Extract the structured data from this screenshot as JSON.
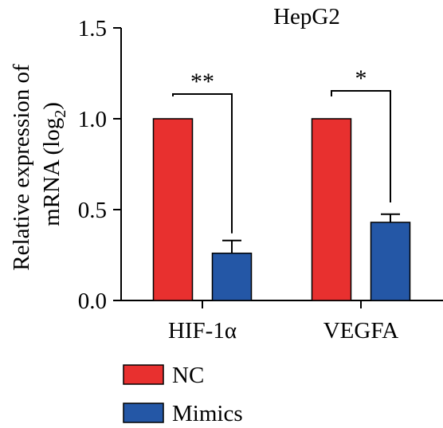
{
  "chart_data": {
    "type": "bar",
    "title": "HepG2",
    "ylabel_line1": "Relative expression of",
    "ylabel_line2_prefix": "mRNA (log",
    "ylabel_line2_sub": "2",
    "ylabel_line2_suffix": ")",
    "xlabel": "",
    "ylim": [
      0,
      1.5
    ],
    "yticks": [
      "0.0",
      "0.5",
      "1.0",
      "1.5"
    ],
    "categories": [
      "HIF-1α",
      "VEGFA"
    ],
    "series": [
      {
        "name": "NC",
        "color": "#e8302f",
        "values": [
          1.0,
          1.0
        ],
        "errors": [
          0,
          0
        ]
      },
      {
        "name": "Mimics",
        "color": "#2457a6",
        "values": [
          0.26,
          0.43
        ],
        "errors": [
          0.07,
          0.045
        ]
      }
    ],
    "significance": [
      "**",
      "*"
    ],
    "legend_position": "bottom-left",
    "grid": false
  }
}
